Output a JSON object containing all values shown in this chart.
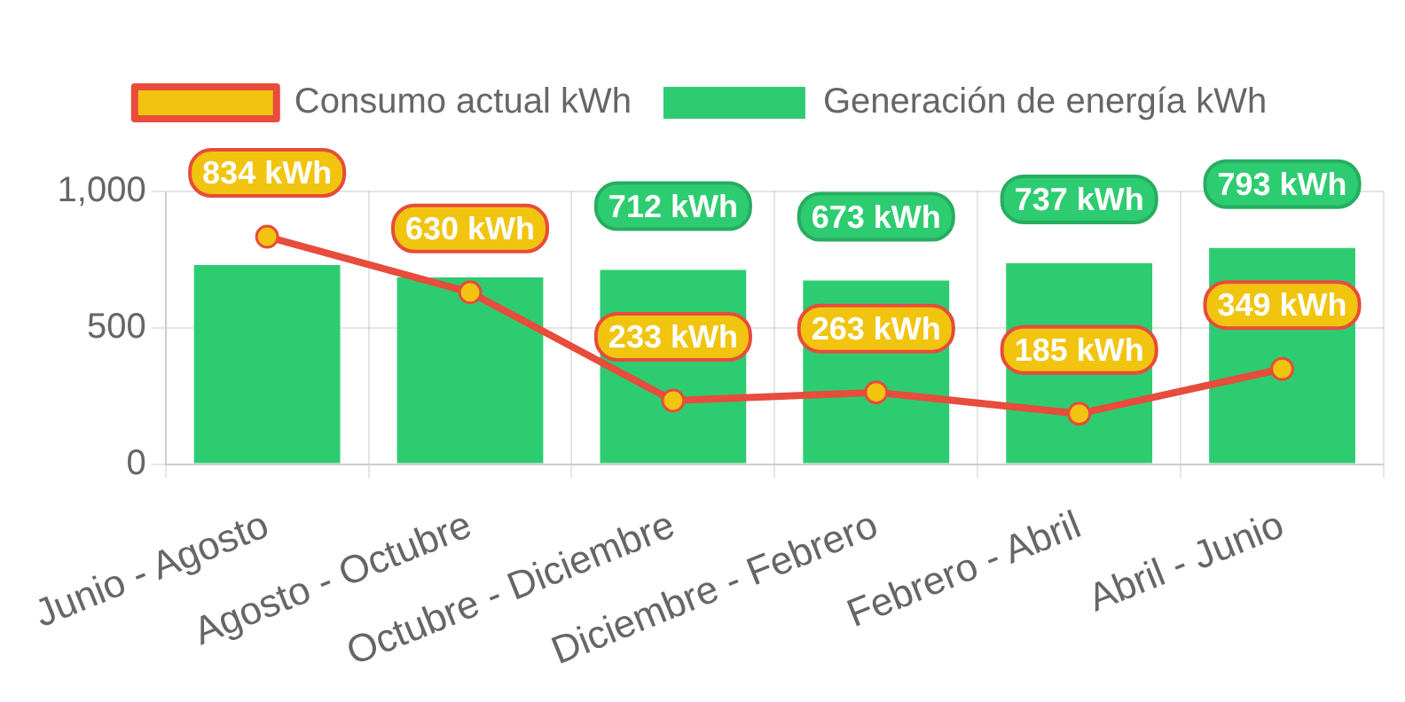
{
  "chart_data": {
    "type": "bar",
    "categories": [
      "Junio - Agosto",
      "Agosto - Octubre",
      "Octubre - Diciembre",
      "Diciembre - Febrero",
      "Febrero - Abril",
      "Abril - Junio"
    ],
    "series": [
      {
        "name": "Consumo actual kWh",
        "type": "line",
        "color": "#e74c3c",
        "colors": [
          "#f1c40f",
          "#f1c40f",
          "#f1c40f",
          "#f1c40f",
          "#f1c40f",
          "#f1c40f"
        ],
        "values": [
          834,
          630,
          233,
          263,
          185,
          349
        ],
        "value_labels": [
          "834 kWh",
          "630 kWh",
          "233 kWh",
          "263 kWh",
          "185 kWh",
          "349 kWh"
        ]
      },
      {
        "name": "Generación de energía kWh",
        "color": "#2ecc71",
        "values": [
          730,
          685,
          712,
          673,
          737,
          793
        ],
        "value_labels": [
          null,
          null,
          "712 kWh",
          "673 kWh",
          "737 kWh",
          "793 kWh"
        ]
      }
    ],
    "ylim": [
      0,
      1000
    ],
    "yticks": [
      0,
      500,
      {
        "value": 1000,
        "label": "1,000"
      }
    ],
    "grid": true,
    "legend": "top",
    "marker": "circle"
  }
}
